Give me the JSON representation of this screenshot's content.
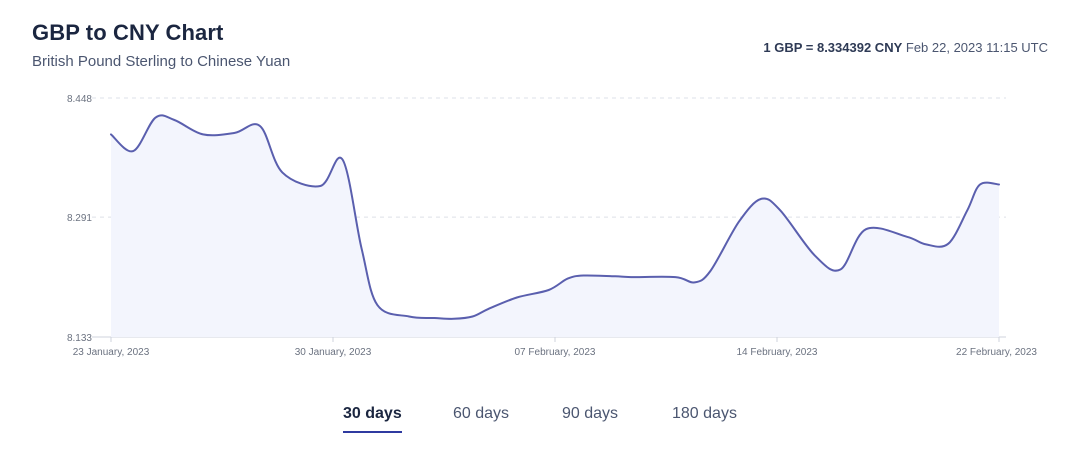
{
  "header": {
    "title": "GBP to CNY Chart",
    "subtitle": "British Pound Sterling to Chinese Yuan",
    "rate_strong": "1 GBP = 8.334392 CNY",
    "rate_time": "Feb 22, 2023 11:15 UTC"
  },
  "tabs": [
    {
      "label": "30 days",
      "active": true
    },
    {
      "label": "60 days",
      "active": false
    },
    {
      "label": "90 days",
      "active": false
    },
    {
      "label": "180 days",
      "active": false
    }
  ],
  "colors": {
    "line": "#5a5fae",
    "fill": "#f3f5fd",
    "grid": "#dde0e8",
    "axis_text": "#6b7280",
    "active_tab": "#2f3aa0"
  },
  "chart_data": {
    "type": "area",
    "title": "GBP to CNY Chart",
    "xlabel": "",
    "ylabel": "",
    "ylim": [
      8.133,
      8.448
    ],
    "yticks": [
      "8.448",
      "8.291",
      "8.133"
    ],
    "xtick_labels": [
      {
        "label": "23 January, 2023",
        "day": 0
      },
      {
        "label": "30 January, 2023",
        "day": 7
      },
      {
        "label": "07 February, 2023",
        "day": 14
      },
      {
        "label": "14 February, 2023",
        "day": 21
      },
      {
        "label": "22 February, 2023",
        "day": 28
      }
    ],
    "x": [
      0,
      0.7,
      1.4,
      2.0,
      2.9,
      3.9,
      4.7,
      5.4,
      6.6,
      7.3,
      7.9,
      8.4,
      9.4,
      10.2,
      10.8,
      11.4,
      11.9,
      12.8,
      13.8,
      14.4,
      14.9,
      15.9,
      16.4,
      17.8,
      18.4,
      18.9,
      19.8,
      20.5,
      21.1,
      22.2,
      23.0,
      23.8,
      25.1,
      25.7,
      26.4,
      27.0,
      27.4,
      28
    ]
  },
  "series_values": {
    "name": "GBP/CNY",
    "values": [
      8.4,
      8.378,
      8.422,
      8.419,
      8.4,
      8.402,
      8.411,
      8.35,
      8.332,
      8.367,
      8.25,
      8.175,
      8.16,
      8.158,
      8.157,
      8.16,
      8.17,
      8.185,
      8.195,
      8.21,
      8.214,
      8.213,
      8.212,
      8.212,
      8.205,
      8.22,
      8.285,
      8.315,
      8.3,
      8.24,
      8.222,
      8.275,
      8.265,
      8.255,
      8.256,
      8.3,
      8.334,
      8.334
    ]
  }
}
